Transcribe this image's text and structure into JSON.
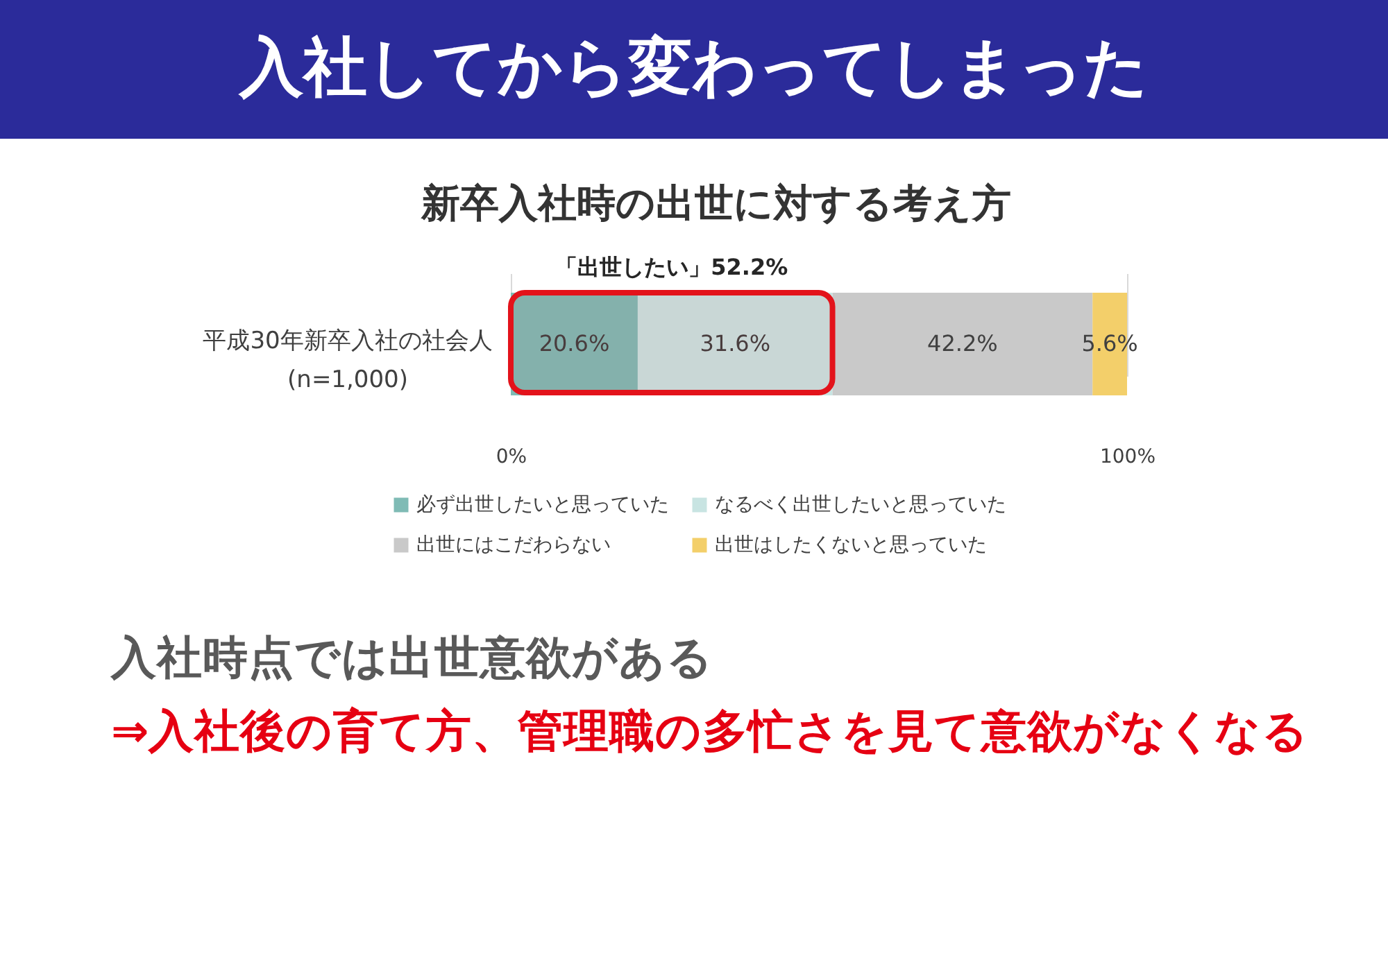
{
  "chart_data": {
    "type": "bar",
    "orientation": "horizontal",
    "stacked": true,
    "title": "入社してから変わってしまった",
    "subtitle": "新卒入社時の出世に対する考え方",
    "categories": [
      "平成30年新卒入社の社会人\n(n=1,000)"
    ],
    "series": [
      {
        "name": "必ず出世したいと思っていた",
        "color": "#7fbbb5",
        "values": [
          20.6
        ],
        "value_labels": [
          "20.6%"
        ]
      },
      {
        "name": "なるべく出世したいと思っていた",
        "color": "#c8e4e2",
        "values": [
          31.6
        ],
        "value_labels": [
          "31.6%"
        ]
      },
      {
        "name": "出世にはこだわらない",
        "color": "#c9c9c9",
        "values": [
          42.2
        ],
        "value_labels": [
          "42.2%"
        ]
      },
      {
        "name": "出世はしたくないと思っていた",
        "color": "#f3cf6a",
        "values": [
          5.6
        ],
        "value_labels": [
          "5.6%"
        ]
      }
    ],
    "xlim": [
      0,
      100
    ],
    "xticks": [
      {
        "value": 0,
        "label": "0%"
      },
      {
        "value": 100,
        "label": "100%"
      }
    ],
    "grid": "x",
    "legend": "bottom",
    "bands": [
      {
        "axis": "x",
        "from": 0,
        "to": 52.2,
        "label": "「出世したい」52.2%",
        "color": "#e3131b"
      }
    ],
    "annotations": [
      "入社時点では出世意欲がある",
      "⇒入社後の育て方、管理職の多忙さを見て意欲がなくなる"
    ]
  }
}
